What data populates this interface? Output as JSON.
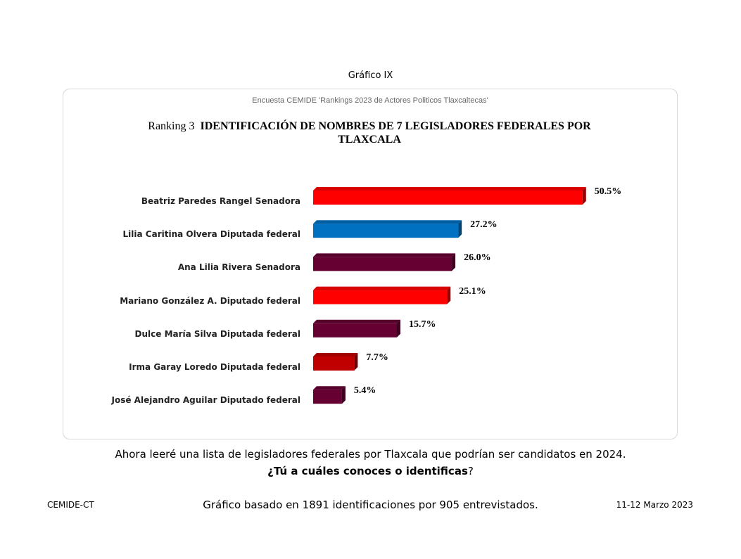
{
  "figure_label": "Gráfico IX",
  "chart_data": {
    "type": "bar",
    "orientation": "horizontal",
    "subtitle": "Encuesta CEMIDE 'Rankings 2023 de Actores Politicos Tlaxcaltecas'",
    "title_prefix": "Ranking 3",
    "title": "IDENTIFICACIÓN DE NOMBRES DE 7 LEGISLADORES FEDERALES POR TLAXCALA",
    "categories": [
      "Beatriz Paredes Rangel Senadora",
      "Lilia Caritina Olvera Diputada federal",
      "Ana Lilia Rivera Senadora",
      "Mariano González A. Diputado federal",
      "Dulce María Silva Diputada federal",
      "Irma Garay Loredo Diputada federal",
      "José Alejandro Aguilar Diputado federal"
    ],
    "values": [
      50.5,
      27.2,
      26.0,
      25.1,
      15.7,
      7.7,
      5.4
    ],
    "labels": [
      "50.5%",
      "27.2%",
      "26.0%",
      "25.1%",
      "15.7%",
      "7.7%",
      "5.4%"
    ],
    "colors": [
      "#ff0000",
      "#0070c0",
      "#660033",
      "#ff0000",
      "#660033",
      "#c00000",
      "#660033"
    ],
    "xlim": [
      0,
      55
    ],
    "grid": false
  },
  "question_line1": "Ahora leeré una lista de legisladores federales por Tlaxcala que podrían ser candidatos en 2024.",
  "question_line2_bold": "¿Tú a cuáles conoces o identificas",
  "question_line2_end": "?",
  "footer": {
    "left": "CEMIDE-CT",
    "center": "Gráfico basado en 1891 identificaciones por 905 entrevistados.",
    "right": "11-12 Marzo 2023"
  }
}
